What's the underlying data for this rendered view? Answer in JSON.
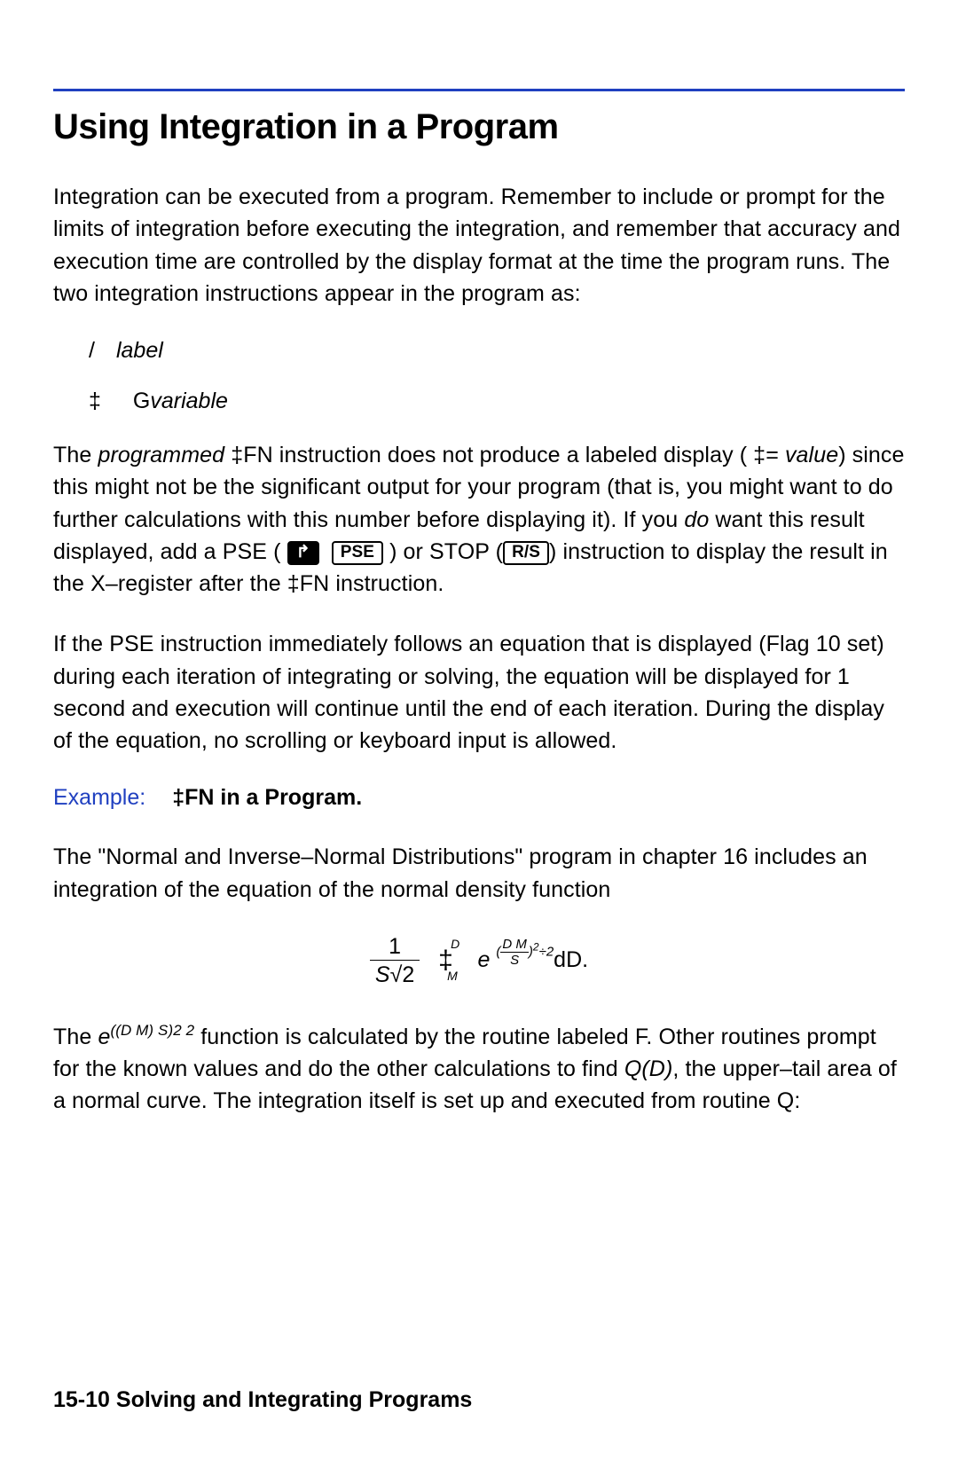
{
  "colors": {
    "rule": "#2040c0",
    "example_label": "#2040c0",
    "text": "#000000",
    "background": "#ffffff"
  },
  "title": "Using Integration in a Program",
  "para1": "Integration can be executed from a program. Remember to include or prompt for the limits of integration before executing the integration, and remember that accuracy and execution time are controlled by the display format at the time the program runs. The two integration instructions appear in the program as:",
  "line1_sym": "/",
  "line1_word": "label",
  "line2_sym": "‡",
  "line2_pref": "G",
  "line2_word": "variable",
  "para2_a": "The ",
  "para2_b": "programmed",
  "para2_c": " ‡FN instruction does not produce a labeled display ( ‡= ",
  "para2_d": "value",
  "para2_e": ") since this might not be the significant output for your program (that is, you might want to do further calculations with this number before displaying it). If you ",
  "para2_f": "do",
  "para2_g": " want this result displayed, add a PSE ( ",
  "para2_h": " ) or STOP (",
  "para2_i": ") instruction to display the result in the X–register after the  ‡FN instruction.",
  "key_shift": "↱",
  "key_pse": "PSE",
  "key_rs": "R/S",
  "para3": "If the PSE instruction immediately follows an equation that is displayed (Flag 10 set) during each iteration of integrating or solving, the equation will be displayed for 1 second and execution will continue until the end of each iteration. During the display of the equation, no scrolling or keyboard input is allowed.",
  "example_label": "Example:",
  "example_title": "‡FN in a Program.",
  "para4": "The \"Normal and Inverse–Normal Distributions\" program in chapter 16 includes an integration of the equation of the normal density function",
  "eqn": {
    "frac_num": "1",
    "frac_den_pre": "S",
    "frac_den_rad": "√2",
    "int_lo": "M",
    "int_hi": "D",
    "base": "e",
    "exp_open": "(",
    "exp_num": "D  M",
    "exp_den": "S",
    "exp_close": ")",
    "exp_sq": "2",
    "exp_div": "÷2",
    "tail": "dD."
  },
  "para5_a": "The ",
  "para5_b": "e",
  "para5_c": "((D  M)  S)2  2",
  "para5_d": " function is calculated by the routine labeled F. Other routines prompt for the known values and do the other calculations to find ",
  "para5_e": "Q(D)",
  "para5_f": ", the upper–tail area of a normal curve. The integration itself is set up and executed from routine Q:",
  "footer_page": "15-10",
  "footer_chapter": "  Solving and Integrating Programs"
}
